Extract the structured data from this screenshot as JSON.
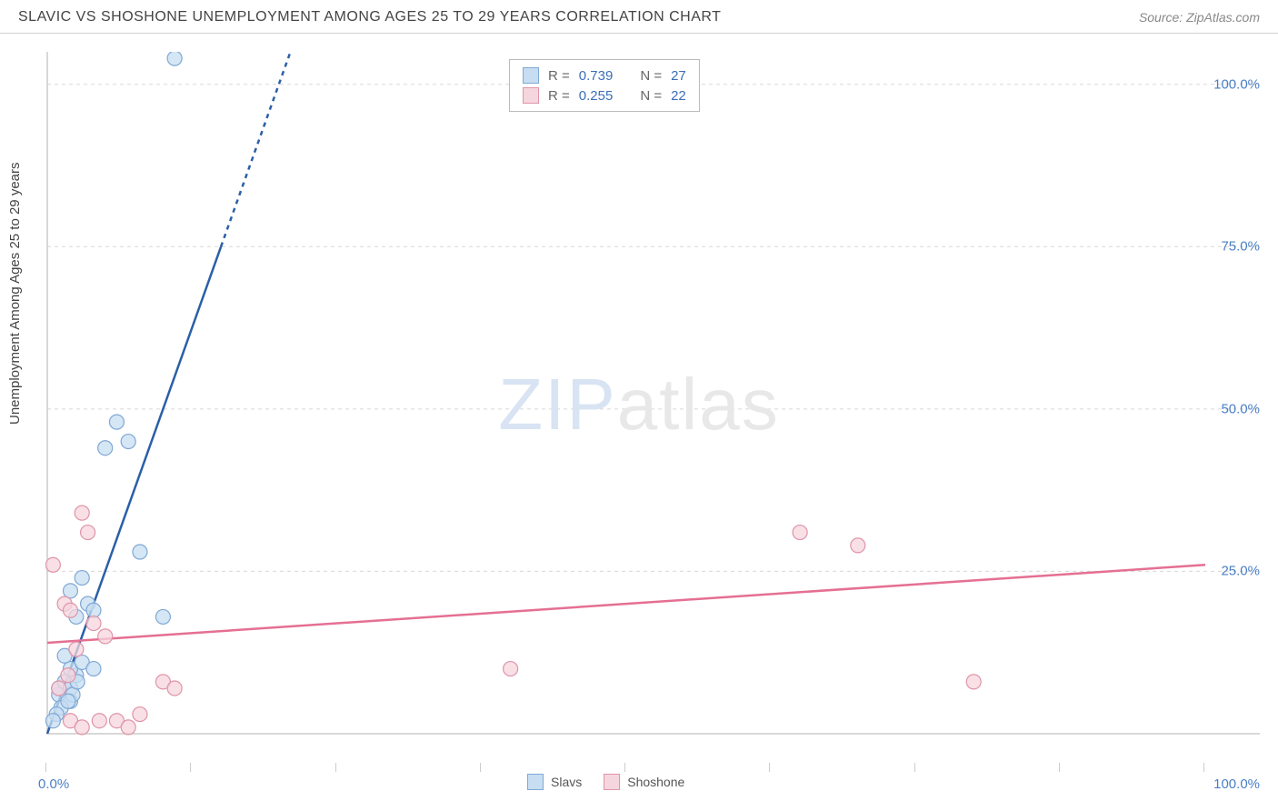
{
  "header": {
    "title": "SLAVIC VS SHOSHONE UNEMPLOYMENT AMONG AGES 25 TO 29 YEARS CORRELATION CHART",
    "source": "Source: ZipAtlas.com"
  },
  "chart": {
    "type": "scatter",
    "ylabel": "Unemployment Among Ages 25 to 29 years",
    "xlim": [
      0,
      100
    ],
    "ylim": [
      0,
      105
    ],
    "xtick_labels": {
      "min": "0.0%",
      "max": "100.0%"
    },
    "ytick_labels": [
      "25.0%",
      "50.0%",
      "75.0%",
      "100.0%"
    ],
    "ytick_values": [
      25,
      50,
      75,
      100
    ],
    "xtick_positions": [
      0,
      12.5,
      25,
      37.5,
      50,
      62.5,
      75,
      87.5,
      100
    ],
    "grid_color": "#d8d8d8",
    "axis_color": "#cccccc",
    "background_color": "#ffffff",
    "watermark": {
      "zip": "ZIP",
      "atlas": "atlas"
    },
    "series": [
      {
        "name": "Slavs",
        "color_fill": "#c7ddf2",
        "color_stroke": "#7fa8d6",
        "marker_radius": 8,
        "trend": {
          "x1": 0,
          "y1": 0,
          "x2": 15,
          "y2": 75,
          "dash_from_x": 15,
          "dash_to_x": 21,
          "dash_to_y": 105,
          "color": "#2b5fa8",
          "width": 2.5
        },
        "points": [
          [
            1,
            6
          ],
          [
            1,
            7
          ],
          [
            1.5,
            8
          ],
          [
            2,
            7
          ],
          [
            2.5,
            9
          ],
          [
            2,
            10
          ],
          [
            1.5,
            12
          ],
          [
            2,
            22
          ],
          [
            2.5,
            18
          ],
          [
            3,
            24
          ],
          [
            3.5,
            20
          ],
          [
            4,
            19
          ],
          [
            5,
            44
          ],
          [
            6,
            48
          ],
          [
            7,
            45
          ],
          [
            8,
            28
          ],
          [
            10,
            18
          ],
          [
            11,
            104
          ],
          [
            2,
            5
          ],
          [
            1.2,
            4
          ],
          [
            0.8,
            3
          ],
          [
            0.5,
            2
          ],
          [
            3,
            11
          ],
          [
            4,
            10
          ],
          [
            2.2,
            6
          ],
          [
            1.8,
            5
          ],
          [
            2.6,
            8
          ]
        ]
      },
      {
        "name": "Shoshone",
        "color_fill": "#f6d6de",
        "color_stroke": "#e094a8",
        "marker_radius": 8,
        "trend": {
          "x1": 0,
          "y1": 14,
          "x2": 100,
          "y2": 26,
          "color": "#e56f93",
          "width": 2.5
        },
        "points": [
          [
            0.5,
            26
          ],
          [
            1.5,
            20
          ],
          [
            2,
            19
          ],
          [
            2.5,
            13
          ],
          [
            3,
            34
          ],
          [
            3.5,
            31
          ],
          [
            4,
            17
          ],
          [
            5,
            15
          ],
          [
            6,
            2
          ],
          [
            7,
            1
          ],
          [
            8,
            3
          ],
          [
            10,
            8
          ],
          [
            11,
            7
          ],
          [
            40,
            10
          ],
          [
            65,
            31
          ],
          [
            70,
            29
          ],
          [
            80,
            8
          ],
          [
            2,
            2
          ],
          [
            3,
            1
          ],
          [
            4.5,
            2
          ],
          [
            1,
            7
          ],
          [
            1.8,
            9
          ]
        ]
      }
    ],
    "legend_top": {
      "rows": [
        {
          "r_label": "R =",
          "r_value": "0.739",
          "n_label": "N =",
          "n_value": "27",
          "swatch_fill": "#c7ddf2",
          "swatch_stroke": "#7fa8d6"
        },
        {
          "r_label": "R =",
          "r_value": "0.255",
          "n_label": "N =",
          "n_value": "22",
          "swatch_fill": "#f6d6de",
          "swatch_stroke": "#e094a8"
        }
      ],
      "label_color": "#666666",
      "value_color": "#3b6fb8"
    },
    "legend_bottom": [
      {
        "label": "Slavs",
        "swatch_fill": "#c7ddf2",
        "swatch_stroke": "#7fa8d6"
      },
      {
        "label": "Shoshone",
        "swatch_fill": "#f6d6de",
        "swatch_stroke": "#e094a8"
      }
    ]
  }
}
